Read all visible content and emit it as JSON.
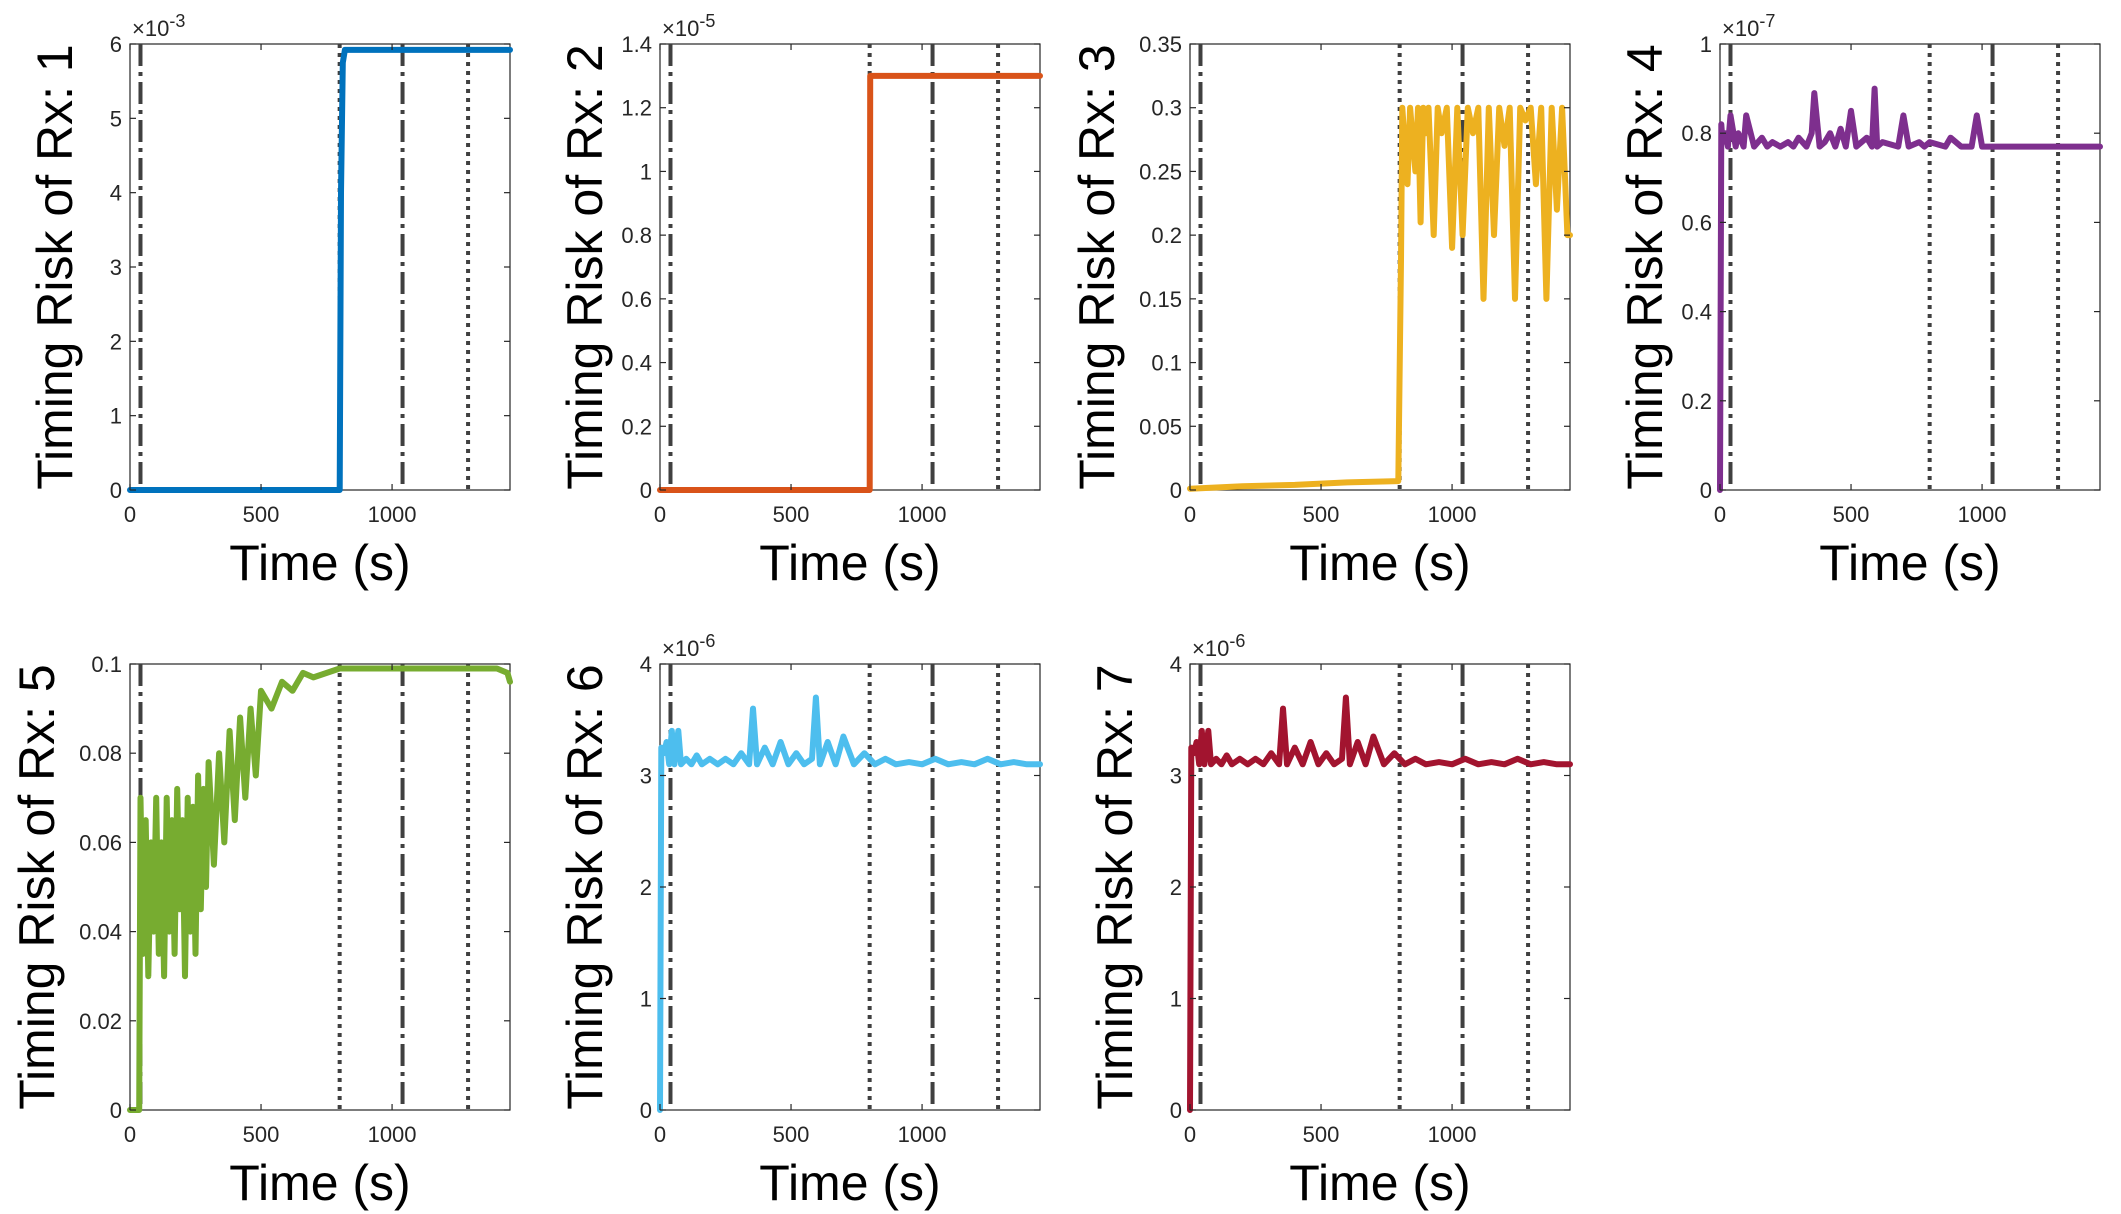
{
  "chart_data": [
    {
      "type": "line",
      "ylabel": "Timing Risk of Rx: 1",
      "xlabel": "Time (s)",
      "xlim": [
        0,
        1450
      ],
      "ylim": [
        0,
        6
      ],
      "x_ticks": [
        "0",
        "500",
        "1000"
      ],
      "y_ticks": [
        "0",
        "1",
        "2",
        "3",
        "4",
        "5",
        "6"
      ],
      "exponent_base": "×10",
      "exponent_power": "-3",
      "color": "#0072BD",
      "series": [
        {
          "name": "Rx 1",
          "x": [
            0,
            790,
            800,
            805,
            812,
            820,
            830,
            1450
          ],
          "y": [
            0,
            0,
            0,
            4,
            5.75,
            5.92,
            5.92,
            5.92
          ]
        }
      ],
      "dash_lines": [
        40,
        1040
      ],
      "dot_lines": [
        800,
        1290
      ]
    },
    {
      "type": "line",
      "ylabel": "Timing Risk of Rx: 2",
      "xlabel": "Time (s)",
      "xlim": [
        0,
        1450
      ],
      "ylim": [
        0,
        1.4
      ],
      "x_ticks": [
        "0",
        "500",
        "1000"
      ],
      "y_ticks": [
        "0",
        "0.2",
        "0.4",
        "0.6",
        "0.8",
        "1",
        "1.2",
        "1.4"
      ],
      "exponent_base": "×10",
      "exponent_power": "-5",
      "color": "#D95319",
      "series": [
        {
          "name": "Rx 2",
          "x": [
            0,
            800,
            802,
            1450
          ],
          "y": [
            0,
            0,
            1.3,
            1.3
          ]
        }
      ],
      "dash_lines": [
        40,
        1040
      ],
      "dot_lines": [
        800,
        1290
      ]
    },
    {
      "type": "line",
      "ylabel": "Timing Risk of Rx: 3",
      "xlabel": "Time (s)",
      "xlim": [
        0,
        1450
      ],
      "ylim": [
        0,
        0.35
      ],
      "x_ticks": [
        "0",
        "500",
        "1000"
      ],
      "y_ticks": [
        "0",
        "0.05",
        "0.1",
        "0.15",
        "0.2",
        "0.25",
        "0.3",
        "0.35"
      ],
      "exponent_base": "",
      "exponent_power": "",
      "color": "#EDB120",
      "series": [
        {
          "name": "Rx 3",
          "x": [
            0,
            200,
            400,
            600,
            795,
            805,
            810,
            830,
            840,
            860,
            870,
            880,
            890,
            900,
            910,
            930,
            945,
            960,
            980,
            1000,
            1020,
            1040,
            1060,
            1080,
            1100,
            1120,
            1140,
            1160,
            1180,
            1200,
            1220,
            1240,
            1260,
            1280,
            1300,
            1320,
            1340,
            1360,
            1380,
            1400,
            1420,
            1440,
            1450
          ],
          "y": [
            0.001,
            0.003,
            0.004,
            0.006,
            0.007,
            0.18,
            0.3,
            0.24,
            0.3,
            0.25,
            0.3,
            0.21,
            0.3,
            0.28,
            0.3,
            0.2,
            0.3,
            0.28,
            0.3,
            0.19,
            0.3,
            0.2,
            0.3,
            0.28,
            0.3,
            0.15,
            0.3,
            0.2,
            0.3,
            0.27,
            0.3,
            0.15,
            0.3,
            0.29,
            0.3,
            0.24,
            0.3,
            0.15,
            0.3,
            0.22,
            0.3,
            0.2,
            0.2
          ]
        }
      ],
      "dash_lines": [
        40,
        1040
      ],
      "dot_lines": [
        800,
        1290
      ]
    },
    {
      "type": "line",
      "ylabel": "Timing Risk of Rx: 4",
      "xlabel": "Time (s)",
      "xlim": [
        0,
        1450
      ],
      "ylim": [
        0,
        1
      ],
      "x_ticks": [
        "0",
        "500",
        "1000"
      ],
      "y_ticks": [
        "0",
        "0.2",
        "0.4",
        "0.6",
        "0.8",
        "1"
      ],
      "exponent_base": "×10",
      "exponent_power": "-7",
      "color": "#7E2F8E",
      "series": [
        {
          "name": "Rx 4",
          "x": [
            0,
            5,
            10,
            20,
            30,
            40,
            60,
            70,
            90,
            100,
            130,
            160,
            180,
            200,
            230,
            260,
            280,
            300,
            330,
            350,
            360,
            380,
            400,
            420,
            440,
            460,
            480,
            500,
            520,
            560,
            580,
            590,
            600,
            620,
            680,
            700,
            720,
            760,
            780,
            800,
            860,
            880,
            920,
            960,
            980,
            1000,
            1100,
            1450
          ],
          "y": [
            0,
            0.82,
            0.78,
            0.8,
            0.77,
            0.84,
            0.77,
            0.8,
            0.77,
            0.84,
            0.77,
            0.79,
            0.77,
            0.78,
            0.77,
            0.78,
            0.77,
            0.79,
            0.77,
            0.8,
            0.89,
            0.77,
            0.78,
            0.8,
            0.77,
            0.81,
            0.77,
            0.85,
            0.77,
            0.79,
            0.77,
            0.9,
            0.77,
            0.78,
            0.77,
            0.84,
            0.77,
            0.78,
            0.77,
            0.78,
            0.77,
            0.79,
            0.77,
            0.77,
            0.84,
            0.77,
            0.77,
            0.77
          ]
        }
      ],
      "dash_lines": [
        40,
        1040
      ],
      "dot_lines": [
        800,
        1290
      ]
    },
    {
      "type": "line",
      "ylabel": "Timing Risk of Rx: 5",
      "xlabel": "Time (s)",
      "xlim": [
        0,
        1450
      ],
      "ylim": [
        0,
        0.1
      ],
      "x_ticks": [
        "0",
        "500",
        "1000"
      ],
      "y_ticks": [
        "0",
        "0.02",
        "0.04",
        "0.06",
        "0.08",
        "0.1"
      ],
      "exponent_base": "",
      "exponent_power": "",
      "color": "#77AC30",
      "series": [
        {
          "name": "Rx 5",
          "x": [
            0,
            35,
            40,
            50,
            60,
            70,
            80,
            90,
            100,
            110,
            120,
            130,
            140,
            150,
            160,
            170,
            180,
            190,
            200,
            210,
            220,
            230,
            240,
            250,
            260,
            270,
            280,
            290,
            300,
            320,
            340,
            360,
            380,
            400,
            420,
            440,
            460,
            480,
            500,
            540,
            580,
            620,
            660,
            700,
            800,
            900,
            1000,
            1100,
            1200,
            1300,
            1400,
            1440,
            1450
          ],
          "y": [
            0,
            0,
            0.07,
            0.035,
            0.065,
            0.03,
            0.06,
            0.04,
            0.07,
            0.035,
            0.06,
            0.03,
            0.07,
            0.04,
            0.065,
            0.035,
            0.072,
            0.045,
            0.065,
            0.03,
            0.07,
            0.04,
            0.068,
            0.035,
            0.075,
            0.045,
            0.072,
            0.05,
            0.078,
            0.055,
            0.08,
            0.06,
            0.085,
            0.065,
            0.088,
            0.07,
            0.09,
            0.075,
            0.094,
            0.09,
            0.096,
            0.094,
            0.098,
            0.097,
            0.099,
            0.099,
            0.099,
            0.099,
            0.099,
            0.099,
            0.099,
            0.098,
            0.096
          ]
        }
      ],
      "dash_lines": [
        40,
        1040
      ],
      "dot_lines": [
        800,
        1290
      ]
    },
    {
      "type": "line",
      "ylabel": "Timing Risk of Rx: 6",
      "xlabel": "Time (s)",
      "xlim": [
        0,
        1450
      ],
      "ylim": [
        0,
        4
      ],
      "x_ticks": [
        "0",
        "500",
        "1000"
      ],
      "y_ticks": [
        "0",
        "1",
        "2",
        "3",
        "4"
      ],
      "exponent_base": "×10",
      "exponent_power": "-6",
      "color": "#4DBEEE",
      "series": [
        {
          "name": "Rx 6",
          "x": [
            0,
            5,
            15,
            25,
            35,
            45,
            55,
            70,
            80,
            100,
            120,
            140,
            160,
            190,
            220,
            250,
            280,
            310,
            340,
            355,
            370,
            400,
            430,
            460,
            490,
            520,
            550,
            580,
            595,
            610,
            640,
            670,
            700,
            740,
            780,
            820,
            860,
            900,
            950,
            1000,
            1050,
            1100,
            1150,
            1200,
            1250,
            1300,
            1350,
            1400,
            1450
          ],
          "y": [
            0,
            3.25,
            3.2,
            3.3,
            3.1,
            3.4,
            3.1,
            3.4,
            3.1,
            3.15,
            3.1,
            3.18,
            3.1,
            3.15,
            3.1,
            3.15,
            3.1,
            3.2,
            3.1,
            3.6,
            3.1,
            3.25,
            3.1,
            3.3,
            3.1,
            3.2,
            3.1,
            3.15,
            3.7,
            3.1,
            3.3,
            3.1,
            3.35,
            3.1,
            3.2,
            3.1,
            3.15,
            3.1,
            3.12,
            3.1,
            3.15,
            3.1,
            3.12,
            3.1,
            3.15,
            3.1,
            3.12,
            3.1,
            3.1
          ]
        }
      ],
      "dash_lines": [
        40,
        1040
      ],
      "dot_lines": [
        800,
        1290
      ]
    },
    {
      "type": "line",
      "ylabel": "Timing Risk of Rx: 7",
      "xlabel": "Time (s)",
      "xlim": [
        0,
        1450
      ],
      "ylim": [
        0,
        4
      ],
      "x_ticks": [
        "0",
        "500",
        "1000"
      ],
      "y_ticks": [
        "0",
        "1",
        "2",
        "3",
        "4"
      ],
      "exponent_base": "×10",
      "exponent_power": "-6",
      "color": "#A2142F",
      "series": [
        {
          "name": "Rx 7",
          "x": [
            0,
            5,
            15,
            25,
            35,
            45,
            55,
            70,
            80,
            100,
            120,
            140,
            160,
            190,
            220,
            250,
            280,
            310,
            340,
            355,
            370,
            400,
            430,
            460,
            490,
            520,
            550,
            580,
            595,
            610,
            640,
            670,
            700,
            740,
            780,
            820,
            860,
            900,
            950,
            1000,
            1050,
            1100,
            1150,
            1200,
            1250,
            1300,
            1350,
            1400,
            1450
          ],
          "y": [
            0,
            3.25,
            3.2,
            3.3,
            3.1,
            3.4,
            3.1,
            3.4,
            3.1,
            3.15,
            3.1,
            3.18,
            3.1,
            3.15,
            3.1,
            3.15,
            3.1,
            3.2,
            3.1,
            3.6,
            3.1,
            3.25,
            3.1,
            3.3,
            3.1,
            3.2,
            3.1,
            3.15,
            3.7,
            3.1,
            3.3,
            3.1,
            3.35,
            3.1,
            3.2,
            3.1,
            3.15,
            3.1,
            3.12,
            3.1,
            3.15,
            3.1,
            3.12,
            3.1,
            3.15,
            3.1,
            3.12,
            3.1,
            3.1
          ]
        }
      ],
      "dash_lines": [
        40,
        1040
      ],
      "dot_lines": [
        800,
        1290
      ]
    }
  ]
}
